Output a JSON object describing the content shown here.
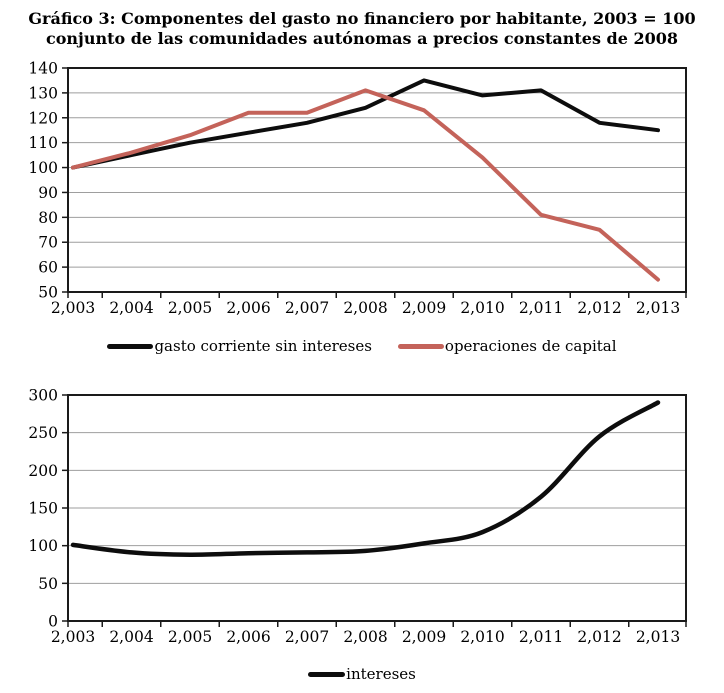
{
  "title": {
    "line1": "Gráfico 3: Componentes del gasto no financiero por habitante, 2003 = 100",
    "line2": "conjunto de las comunidades autónomas a precios constantes de 2008"
  },
  "colors": {
    "black_series": "#0d0d0d",
    "red_series": "#c4635a",
    "gridline": "#9e9e9e",
    "axis": "#1a1a1a",
    "background": "#ffffff"
  },
  "chart_data": [
    {
      "type": "line",
      "name": "componentes-gasto-no-financiero",
      "categories": [
        2003,
        2004,
        2005,
        2006,
        2007,
        2008,
        2009,
        2010,
        2011,
        2012,
        2013
      ],
      "x_tick_labels": [
        "2,003",
        "2,004",
        "2,005",
        "2,006",
        "2,007",
        "2,008",
        "2,009",
        "2,010",
        "2,011",
        "2,012",
        "2,013"
      ],
      "y_tick_labels": [
        "140",
        "130",
        "120",
        "110",
        "100",
        "90",
        "80",
        "70",
        "60",
        "50"
      ],
      "ylim": [
        50,
        140
      ],
      "ytick_step": 10,
      "grid": true,
      "legend_position": "bottom",
      "series": [
        {
          "name": "gasto corriente sin intereses",
          "color": "#0d0d0d",
          "smooth": false,
          "values": [
            100,
            105,
            110,
            114,
            118,
            124,
            135,
            129,
            131,
            118,
            115
          ]
        },
        {
          "name": "operaciones de capital",
          "color": "#c4635a",
          "smooth": false,
          "values": [
            100,
            106,
            113,
            122,
            122,
            131,
            123,
            104,
            81,
            75,
            55
          ]
        }
      ]
    },
    {
      "type": "line",
      "name": "intereses",
      "categories": [
        2003,
        2004,
        2005,
        2006,
        2007,
        2008,
        2009,
        2010,
        2011,
        2012,
        2013
      ],
      "x_tick_labels": [
        "2,003",
        "2,004",
        "2,005",
        "2,006",
        "2,007",
        "2,008",
        "2,009",
        "2,010",
        "2,011",
        "2,012",
        "2,013"
      ],
      "y_tick_labels": [
        "300",
        "250",
        "200",
        "150",
        "100",
        "50",
        "0"
      ],
      "ylim": [
        0,
        300
      ],
      "ytick_step": 50,
      "grid": true,
      "legend_position": "bottom",
      "series": [
        {
          "name": "intereses",
          "color": "#0d0d0d",
          "smooth": true,
          "values": [
            101,
            91,
            88,
            90,
            91,
            93,
            103,
            118,
            165,
            245,
            290
          ]
        }
      ]
    }
  ]
}
